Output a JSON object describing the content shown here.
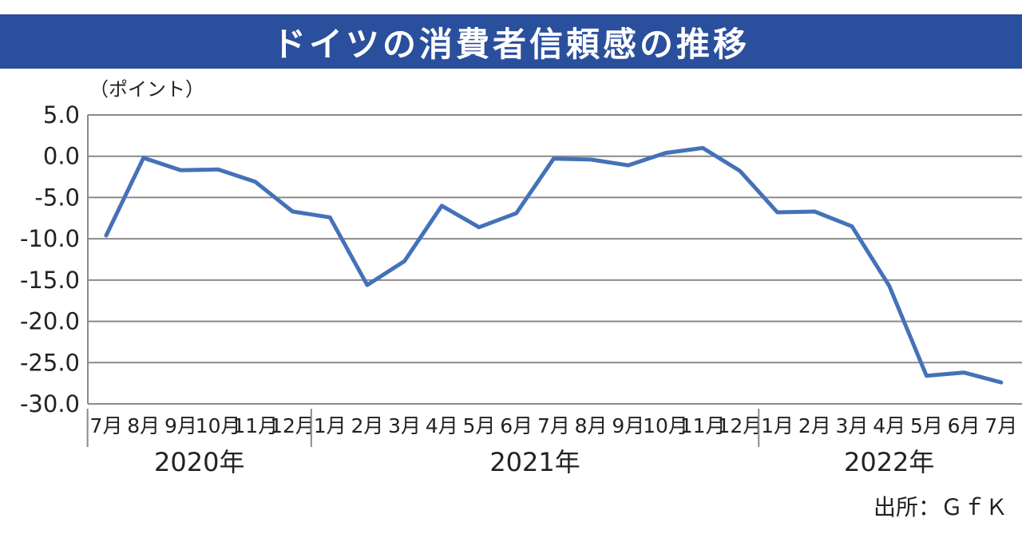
{
  "chart_data": {
    "type": "line",
    "title": "ドイツの消費者信頼感の推移",
    "ylabel": "（ポイント）",
    "ylim": [
      -30.0,
      5.0
    ],
    "yticks": [
      "5.0",
      "0.0",
      "-5.0",
      "-10.0",
      "-15.0",
      "-20.0",
      "-25.0",
      "-30.0"
    ],
    "yticks_values": [
      5,
      0,
      -5,
      -10,
      -15,
      -20,
      -25,
      -30
    ],
    "categories": [
      "7月",
      "8月",
      "9月",
      "10月",
      "11月",
      "12月",
      "1月",
      "2月",
      "3月",
      "4月",
      "5月",
      "6月",
      "7月",
      "8月",
      "9月",
      "10月",
      "11月",
      "12月",
      "1月",
      "2月",
      "3月",
      "4月",
      "5月",
      "6月",
      "7月"
    ],
    "years": [
      {
        "label": "2020年",
        "start": 0,
        "end": 5
      },
      {
        "label": "2021年",
        "start": 6,
        "end": 17
      },
      {
        "label": "2022年",
        "start": 18,
        "end": 24
      }
    ],
    "series": [
      {
        "values": [
          -9.6,
          -0.2,
          -1.7,
          -1.6,
          -3.1,
          -6.7,
          -7.4,
          -15.6,
          -12.7,
          -6.0,
          -8.6,
          -6.9,
          -0.3,
          -0.4,
          -1.1,
          0.4,
          1.0,
          -1.8,
          -6.8,
          -6.7,
          -8.5,
          -15.7,
          -26.6,
          -26.2,
          -27.4
        ]
      }
    ],
    "line_color": "#4472b8",
    "grid": true
  },
  "source": "出所：ＧｆＫ"
}
